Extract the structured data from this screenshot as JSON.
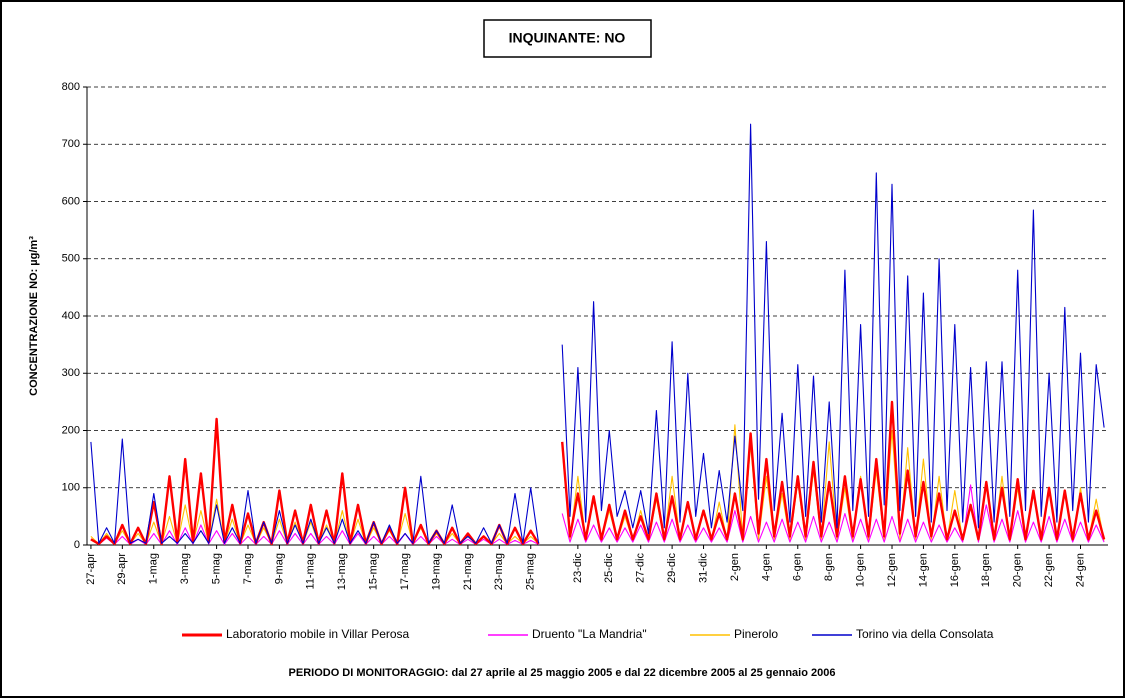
{
  "chart_data": {
    "type": "line",
    "title": "INQUINANTE: NO",
    "y_label": "CONCENTRAZIONE NO:  µg/m³",
    "footer": "PERIODO DI MONITORAGGIO: dal 27 aprile al 25 maggio 2005 e dal 22 dicembre 2005 al 25 gennaio 2006",
    "ylim": [
      0,
      800
    ],
    "yticks": [
      0,
      100,
      200,
      300,
      400,
      500,
      600,
      700,
      800
    ],
    "grid": true,
    "categories": [
      "27-apr",
      null,
      null,
      null,
      "29-apr",
      null,
      null,
      null,
      "1-mag",
      null,
      null,
      null,
      "3-mag",
      null,
      null,
      null,
      "5-mag",
      null,
      null,
      null,
      "7-mag",
      null,
      null,
      null,
      "9-mag",
      null,
      null,
      null,
      "11-mag",
      null,
      null,
      null,
      "13-mag",
      null,
      null,
      null,
      "15-mag",
      null,
      null,
      null,
      "17-mag",
      null,
      null,
      null,
      "19-mag",
      null,
      null,
      null,
      "21-mag",
      null,
      null,
      null,
      "23-mag",
      null,
      null,
      null,
      "25-mag",
      null,
      null,
      null,
      null,
      null,
      "23-dic",
      null,
      null,
      null,
      "25-dic",
      null,
      null,
      null,
      "27-dic",
      null,
      null,
      null,
      "29-dic",
      null,
      null,
      null,
      "31-dic",
      null,
      null,
      null,
      "2-gen",
      null,
      null,
      null,
      "4-gen",
      null,
      null,
      null,
      "6-gen",
      null,
      null,
      null,
      "8-gen",
      null,
      null,
      null,
      "10-gen",
      null,
      null,
      null,
      "12-gen",
      null,
      null,
      null,
      "14-gen",
      null,
      null,
      null,
      "16-gen",
      null,
      null,
      null,
      "18-gen",
      null,
      null,
      null,
      "20-gen",
      null,
      null,
      null,
      "22-gen",
      null,
      null,
      null,
      "24-gen",
      null,
      null,
      null
    ],
    "series": [
      {
        "name": "Laboratorio mobile in Villar Perosa",
        "color": "#ff0000",
        "values": [
          10,
          2,
          15,
          2,
          35,
          2,
          30,
          2,
          75,
          2,
          120,
          5,
          150,
          5,
          125,
          5,
          220,
          5,
          70,
          3,
          55,
          3,
          40,
          2,
          95,
          3,
          60,
          3,
          70,
          3,
          60,
          3,
          125,
          3,
          70,
          3,
          40,
          2,
          30,
          2,
          100,
          3,
          35,
          2,
          25,
          2,
          30,
          2,
          20,
          2,
          15,
          2,
          35,
          2,
          30,
          2,
          25,
          2,
          null,
          null,
          180,
          15,
          90,
          10,
          85,
          10,
          70,
          10,
          60,
          10,
          50,
          10,
          90,
          10,
          85,
          10,
          75,
          10,
          60,
          10,
          55,
          10,
          90,
          10,
          195,
          20,
          150,
          15,
          110,
          15,
          120,
          15,
          145,
          15,
          110,
          15,
          120,
          15,
          115,
          15,
          150,
          15,
          250,
          20,
          130,
          15,
          110,
          15,
          90,
          10,
          60,
          10,
          70,
          10,
          110,
          10,
          100,
          10,
          115,
          10,
          95,
          10,
          100,
          10,
          95,
          10,
          90,
          10,
          60,
          10
        ]
      },
      {
        "name": "Druento \"La Mandria\"",
        "color": "#ff00ff",
        "values": [
          10,
          1,
          12,
          1,
          15,
          1,
          10,
          1,
          20,
          1,
          25,
          1,
          30,
          2,
          35,
          2,
          25,
          1,
          20,
          1,
          15,
          1,
          15,
          1,
          25,
          1,
          20,
          1,
          20,
          1,
          15,
          1,
          25,
          1,
          20,
          1,
          15,
          1,
          15,
          1,
          20,
          1,
          15,
          1,
          15,
          1,
          10,
          1,
          10,
          1,
          10,
          1,
          10,
          1,
          8,
          1,
          8,
          1,
          null,
          null,
          55,
          5,
          45,
          5,
          35,
          5,
          30,
          5,
          30,
          5,
          35,
          5,
          40,
          5,
          45,
          5,
          35,
          5,
          30,
          5,
          30,
          5,
          60,
          5,
          50,
          5,
          40,
          5,
          45,
          5,
          40,
          5,
          50,
          5,
          40,
          5,
          55,
          5,
          45,
          5,
          45,
          5,
          50,
          5,
          45,
          5,
          40,
          5,
          35,
          5,
          30,
          5,
          105,
          5,
          70,
          5,
          45,
          5,
          60,
          5,
          40,
          5,
          50,
          5,
          45,
          5,
          40,
          5,
          35,
          5
        ]
      },
      {
        "name": "Pinerolo",
        "color": "#ffc000",
        "values": [
          15,
          2,
          20,
          2,
          25,
          2,
          20,
          2,
          40,
          2,
          50,
          2,
          70,
          3,
          60,
          3,
          80,
          3,
          45,
          2,
          35,
          2,
          30,
          2,
          45,
          2,
          40,
          2,
          40,
          2,
          35,
          2,
          60,
          2,
          45,
          2,
          30,
          2,
          25,
          2,
          55,
          2,
          30,
          2,
          20,
          2,
          20,
          2,
          15,
          2,
          15,
          2,
          20,
          2,
          15,
          2,
          15,
          2,
          null,
          null,
          170,
          10,
          120,
          10,
          80,
          8,
          60,
          8,
          50,
          8,
          60,
          8,
          80,
          8,
          120,
          10,
          70,
          8,
          60,
          8,
          75,
          8,
          210,
          10,
          175,
          10,
          120,
          10,
          90,
          8,
          110,
          8,
          130,
          10,
          180,
          10,
          100,
          8,
          120,
          10,
          130,
          10,
          200,
          10,
          170,
          10,
          150,
          10,
          120,
          8,
          95,
          8,
          70,
          8,
          110,
          8,
          120,
          8,
          100,
          8,
          90,
          8,
          95,
          8,
          95,
          8,
          100,
          8,
          80,
          8
        ]
      },
      {
        "name": "Torino via della Consolata",
        "color": "#0000cc",
        "values": [
          180,
          3,
          30,
          3,
          185,
          3,
          10,
          3,
          90,
          3,
          15,
          3,
          20,
          3,
          25,
          3,
          70,
          3,
          30,
          3,
          95,
          3,
          40,
          3,
          60,
          3,
          35,
          3,
          45,
          3,
          30,
          3,
          45,
          3,
          25,
          3,
          40,
          3,
          35,
          3,
          20,
          3,
          120,
          3,
          25,
          3,
          70,
          3,
          15,
          3,
          30,
          3,
          35,
          3,
          90,
          3,
          100,
          3,
          null,
          null,
          350,
          50,
          310,
          40,
          425,
          60,
          200,
          50,
          95,
          30,
          95,
          20,
          235,
          30,
          355,
          40,
          300,
          50,
          160,
          30,
          130,
          40,
          190,
          60,
          735,
          80,
          530,
          60,
          230,
          40,
          315,
          50,
          295,
          40,
          250,
          30,
          480,
          60,
          385,
          50,
          650,
          70,
          630,
          60,
          470,
          50,
          440,
          40,
          500,
          60,
          385,
          40,
          310,
          30,
          320,
          40,
          320,
          50,
          480,
          60,
          585,
          50,
          300,
          40,
          415,
          60,
          335,
          40,
          315,
          205
        ]
      }
    ]
  }
}
